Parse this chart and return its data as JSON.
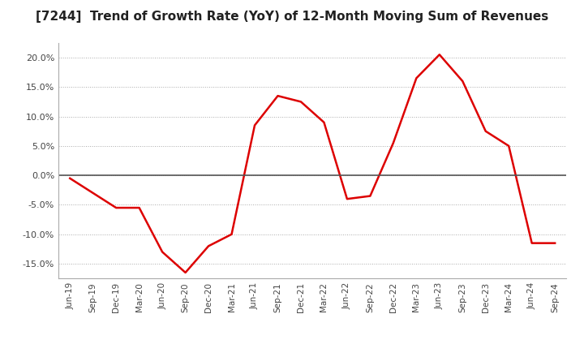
{
  "title": "[7244]  Trend of Growth Rate (YoY) of 12-Month Moving Sum of Revenues",
  "title_fontsize": 11,
  "line_color": "#dd0000",
  "background_color": "#ffffff",
  "grid_color": "#aaaaaa",
  "ylim": [
    -0.175,
    0.225
  ],
  "yticks": [
    -0.15,
    -0.1,
    -0.05,
    0.0,
    0.05,
    0.1,
    0.15,
    0.2
  ],
  "x_labels": [
    "Jun-19",
    "Sep-19",
    "Dec-19",
    "Mar-20",
    "Jun-20",
    "Sep-20",
    "Dec-20",
    "Mar-21",
    "Jun-21",
    "Sep-21",
    "Dec-21",
    "Mar-22",
    "Jun-22",
    "Sep-22",
    "Dec-22",
    "Mar-23",
    "Jun-23",
    "Sep-23",
    "Dec-23",
    "Mar-24",
    "Jun-24",
    "Sep-24"
  ],
  "values": [
    -0.005,
    -0.03,
    -0.055,
    -0.055,
    -0.13,
    -0.165,
    -0.12,
    -0.1,
    0.085,
    0.135,
    0.125,
    0.09,
    -0.04,
    -0.035,
    0.055,
    0.165,
    0.205,
    0.16,
    0.075,
    0.05,
    -0.115,
    -0.115
  ]
}
